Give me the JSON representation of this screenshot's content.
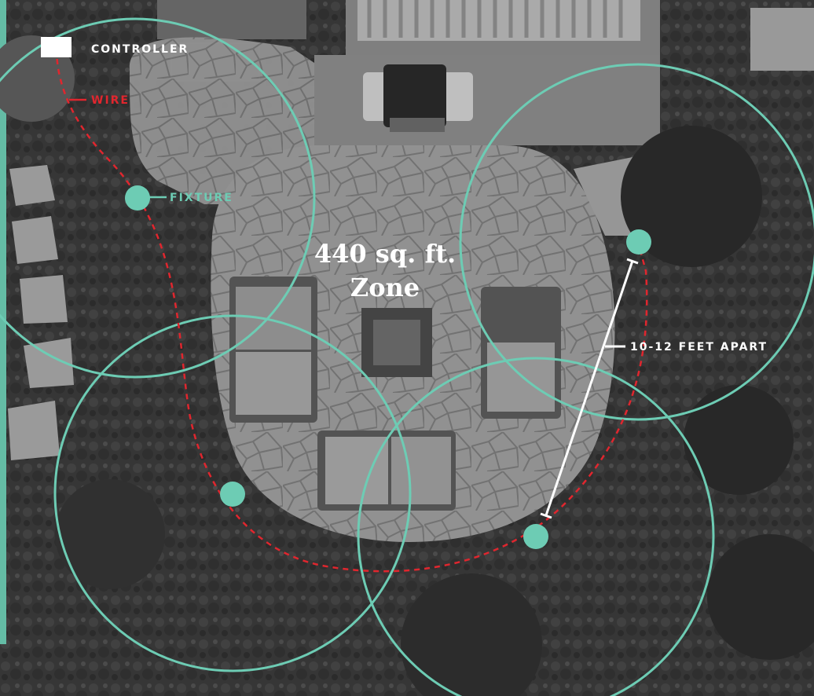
{
  "title": {
    "line1": "440 sq. ft.",
    "line2": "Zone"
  },
  "labels": {
    "controller": "CONTROLLER",
    "wire": "WIRE",
    "fixture": "FIXTURE",
    "spacing": "10-12 FEET APART"
  },
  "colors": {
    "fixture": "#6dccb4",
    "wire": "#e0262e",
    "text": "#ffffff",
    "controller": "#ffffff"
  }
}
